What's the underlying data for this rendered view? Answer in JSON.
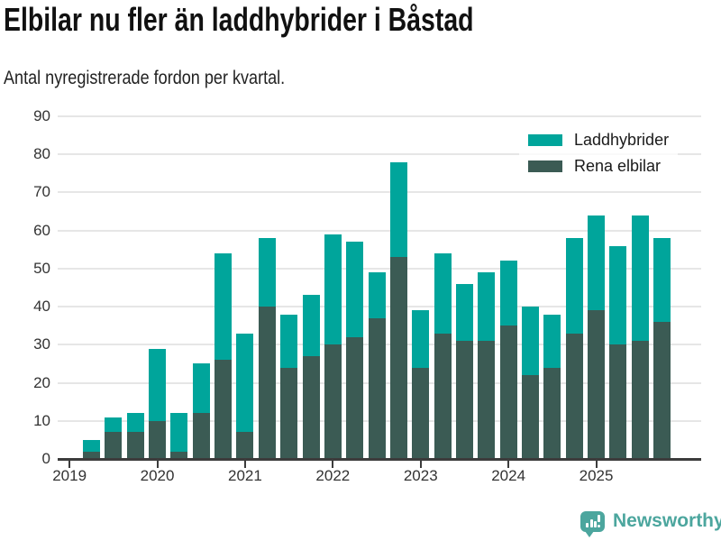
{
  "header": {
    "title": "Elbilar nu fler än laddhybrider i Båstad",
    "subtitle": "Antal nyregistrerade fordon per kvartal."
  },
  "legend": {
    "items": [
      {
        "label": "Laddhybrider",
        "color": "#00a59b"
      },
      {
        "label": "Rena elbilar",
        "color": "#3b5b54"
      }
    ]
  },
  "footer": {
    "brand": "Newsworthy",
    "logo_icon": "newsworthy-chart-bubble-icon",
    "brand_color": "#4ca69e"
  },
  "colors": {
    "laddhybrider": "#00a59b",
    "rena_elbilar": "#3b5b54",
    "gridline": "#e6e6e6",
    "axis": "#3c3c3c",
    "tick_text": "#333333",
    "title_text": "#111111"
  },
  "chart_data": {
    "type": "bar",
    "stacked": true,
    "title": "Elbilar nu fler än laddhybrider i Båstad",
    "subtitle": "Antal nyregistrerade fordon per kvartal.",
    "xlabel": "",
    "ylabel": "",
    "ylim": [
      0,
      90
    ],
    "yticks": [
      0,
      10,
      20,
      30,
      40,
      50,
      60,
      70,
      80,
      90
    ],
    "x_tick_labels": [
      "2019",
      "2020",
      "2021",
      "2022",
      "2023",
      "2024",
      "2025"
    ],
    "grid": "horizontal",
    "legend_position": "top-right",
    "categories": [
      "2019 Q2",
      "2019 Q3",
      "2019 Q4",
      "2020 Q1",
      "2020 Q2",
      "2020 Q3",
      "2020 Q4",
      "2021 Q1",
      "2021 Q2",
      "2021 Q3",
      "2021 Q4",
      "2022 Q1",
      "2022 Q2",
      "2022 Q3",
      "2022 Q4",
      "2023 Q1",
      "2023 Q2",
      "2023 Q3",
      "2023 Q4",
      "2024 Q1",
      "2024 Q2",
      "2024 Q3",
      "2024 Q4",
      "2025 Q1",
      "2025 Q2",
      "2025 Q3",
      "2025 Q4"
    ],
    "series": [
      {
        "name": "Rena elbilar",
        "color": "#3b5b54",
        "stack_order": "bottom",
        "values": [
          2,
          7,
          7,
          10,
          2,
          12,
          26,
          7,
          40,
          24,
          27,
          30,
          32,
          37,
          53,
          24,
          33,
          31,
          31,
          35,
          22,
          24,
          33,
          39,
          30,
          31,
          36
        ]
      },
      {
        "name": "Laddhybrider",
        "color": "#00a59b",
        "stack_order": "top",
        "values": [
          3,
          4,
          5,
          19,
          10,
          13,
          28,
          26,
          18,
          14,
          16,
          29,
          25,
          12,
          25,
          15,
          21,
          15,
          18,
          17,
          18,
          14,
          25,
          25,
          26,
          33,
          22
        ]
      }
    ],
    "stacked_totals": [
      5,
      11,
      12,
      29,
      12,
      25,
      54,
      33,
      58,
      38,
      43,
      59,
      57,
      49,
      78,
      39,
      54,
      46,
      49,
      52,
      40,
      38,
      58,
      64,
      56,
      64,
      58
    ]
  }
}
